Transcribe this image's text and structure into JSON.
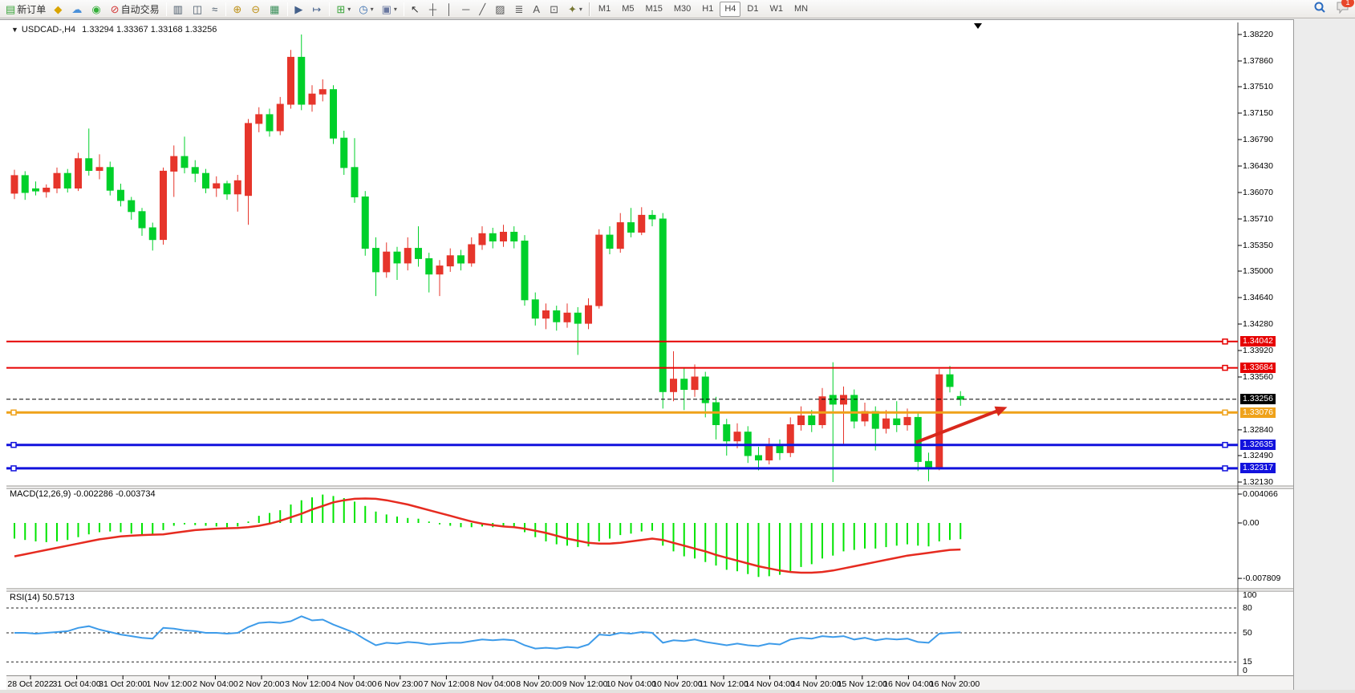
{
  "toolbar": {
    "groups": [
      [
        {
          "name": "new-order-icon",
          "glyph": "▤",
          "color": "#3aa53a",
          "label": "新订单"
        },
        {
          "name": "market-gold-icon",
          "glyph": "◆",
          "color": "#d9a400"
        },
        {
          "name": "community-icon",
          "glyph": "☁",
          "color": "#4a90d9"
        },
        {
          "name": "signals-icon",
          "glyph": "◉",
          "color": "#35b03a"
        },
        {
          "name": "autotrade-icon",
          "glyph": "⊘",
          "color": "#d23535",
          "label": "自动交易"
        }
      ],
      [
        {
          "name": "bar-chart-icon",
          "glyph": "▥",
          "color": "#4a5a6a"
        },
        {
          "name": "candlestick-chart-icon",
          "glyph": "◫",
          "color": "#4a5a6a"
        },
        {
          "name": "line-chart-icon",
          "glyph": "≈",
          "color": "#4a5a6a"
        }
      ],
      [
        {
          "name": "zoom-in-icon",
          "glyph": "⊕",
          "color": "#bd9017"
        },
        {
          "name": "zoom-out-icon",
          "glyph": "⊖",
          "color": "#bd9017"
        },
        {
          "name": "tile-windows-icon",
          "glyph": "▦",
          "color": "#3a8f5a"
        }
      ],
      [
        {
          "name": "auto-scroll-icon",
          "glyph": "▶",
          "color": "#44608a"
        },
        {
          "name": "chart-shift-icon",
          "glyph": "↦",
          "color": "#44608a"
        }
      ],
      [
        {
          "name": "new-chart-icon",
          "glyph": "⊞",
          "color": "#3aa53a",
          "dd": true
        },
        {
          "name": "periods-icon",
          "glyph": "◷",
          "color": "#3a6fb0",
          "dd": true
        },
        {
          "name": "templates-icon",
          "glyph": "▣",
          "color": "#6a78a0",
          "dd": true
        }
      ],
      [
        {
          "name": "cursor-icon",
          "glyph": "↖",
          "color": "#333333"
        },
        {
          "name": "crosshair-icon",
          "glyph": "┼",
          "color": "#555555"
        },
        {
          "name": "vertical-line-icon",
          "glyph": "│",
          "color": "#555555"
        },
        {
          "name": "horizontal-line-icon",
          "glyph": "─",
          "color": "#555555"
        },
        {
          "name": "trendline-icon",
          "glyph": "╱",
          "color": "#555555"
        },
        {
          "name": "channel-icon",
          "glyph": "▨",
          "color": "#555555"
        },
        {
          "name": "fibonacci-icon",
          "glyph": "≣",
          "color": "#555555"
        },
        {
          "name": "text-icon",
          "glyph": "A",
          "color": "#555555"
        },
        {
          "name": "text-label-icon",
          "glyph": "⊡",
          "color": "#555555"
        },
        {
          "name": "arrows-icon",
          "glyph": "✦",
          "color": "#777733",
          "dd": true
        }
      ]
    ],
    "timeframes": {
      "items": [
        "M1",
        "M5",
        "M15",
        "M30",
        "H1",
        "H4",
        "D1",
        "W1",
        "MN"
      ],
      "active": "H4"
    },
    "notification_count": "1"
  },
  "chart": {
    "title": {
      "symbol": "USDCAD-,H4",
      "ohlc": "1.33294 1.33367 1.33168 1.33256"
    },
    "macd_label": "MACD(12,26,9) -0.002286 -0.003734",
    "rsi_label": "RSI(14) 50.5713"
  },
  "price_axis": {
    "ticks": [
      "1.38220",
      "1.37860",
      "1.37510",
      "1.37150",
      "1.36790",
      "1.36430",
      "1.36070",
      "1.35710",
      "1.35350",
      "1.35000",
      "1.34640",
      "1.34280",
      "1.33920",
      "1.33560",
      "1.32840",
      "1.32490",
      "1.32130"
    ]
  },
  "macd_axis": {
    "ticks": [
      "0.004066",
      "0.00",
      "-0.007809"
    ]
  },
  "rsi_axis": {
    "ticks": [
      "100",
      "80",
      "50",
      "15",
      "0"
    ]
  },
  "time_axis": {
    "labels": [
      "28 Oct 2022",
      "31 Oct 04:00",
      "31 Oct 20:00",
      "1 Nov 12:00",
      "2 Nov 04:00",
      "2 Nov 20:00",
      "3 Nov 12:00",
      "4 Nov 04:00",
      "6 Nov 23:00",
      "7 Nov 12:00",
      "8 Nov 04:00",
      "8 Nov 20:00",
      "9 Nov 12:00",
      "10 Nov 04:00",
      "10 Nov 20:00",
      "11 Nov 12:00",
      "14 Nov 04:00",
      "14 Nov 20:00",
      "15 Nov 12:00",
      "16 Nov 04:00",
      "16 Nov 20:00"
    ]
  },
  "colors": {
    "bull_candle": "#e6352b",
    "bear_candle": "#00d02a",
    "macd_hist": "#00e400",
    "macd_signal": "#e62b20",
    "rsi_line": "#3d9be9",
    "level_red": "#e60000",
    "level_orange": "#efa21a",
    "level_blue": "#1212dd",
    "bid_black": "#000000",
    "arrow_red": "#d8281c"
  },
  "chart_data": {
    "type": "candlestick",
    "symbol": "USDCAD",
    "timeframe": "H4",
    "price_axis_range": {
      "top": 1.3843,
      "bottom": 1.3197
    },
    "candles": [
      [
        1.3606,
        1.3638,
        1.3598,
        1.363
      ],
      [
        1.363,
        1.3636,
        1.3597,
        1.3607
      ],
      [
        1.3612,
        1.3622,
        1.3603,
        1.3609
      ],
      [
        1.3608,
        1.3618,
        1.36,
        1.3613
      ],
      [
        1.3613,
        1.3641,
        1.3606,
        1.3633
      ],
      [
        1.3633,
        1.3639,
        1.3607,
        1.3613
      ],
      [
        1.3613,
        1.3661,
        1.3609,
        1.3653
      ],
      [
        1.3653,
        1.3694,
        1.363,
        1.3637
      ],
      [
        1.3637,
        1.3659,
        1.3625,
        1.3641
      ],
      [
        1.3641,
        1.3649,
        1.3603,
        1.361
      ],
      [
        1.361,
        1.3619,
        1.3588,
        1.3596
      ],
      [
        1.3596,
        1.3601,
        1.357,
        1.3581
      ],
      [
        1.3581,
        1.3586,
        1.3548,
        1.3559
      ],
      [
        1.3559,
        1.3566,
        1.3528,
        1.3543
      ],
      [
        1.3543,
        1.3641,
        1.3536,
        1.3636
      ],
      [
        1.3636,
        1.3671,
        1.3601,
        1.3656
      ],
      [
        1.3656,
        1.3683,
        1.3633,
        1.3641
      ],
      [
        1.3641,
        1.3651,
        1.3621,
        1.3633
      ],
      [
        1.3633,
        1.3639,
        1.3606,
        1.3613
      ],
      [
        1.3613,
        1.3629,
        1.3601,
        1.3619
      ],
      [
        1.3619,
        1.3623,
        1.3597,
        1.3605
      ],
      [
        1.3605,
        1.3631,
        1.3581,
        1.3623
      ],
      [
        1.3603,
        1.3707,
        1.3563,
        1.3701
      ],
      [
        1.3701,
        1.3723,
        1.3689,
        1.3713
      ],
      [
        1.3713,
        1.3721,
        1.3683,
        1.3691
      ],
      [
        1.3691,
        1.3737,
        1.3685,
        1.3727
      ],
      [
        1.3727,
        1.3801,
        1.3721,
        1.3791
      ],
      [
        1.3791,
        1.3822,
        1.3719,
        1.3727
      ],
      [
        1.3727,
        1.3753,
        1.3717,
        1.3741
      ],
      [
        1.3741,
        1.3761,
        1.3731,
        1.3747
      ],
      [
        1.3747,
        1.3753,
        1.3673,
        1.3681
      ],
      [
        1.3681,
        1.3691,
        1.3631,
        1.3641
      ],
      [
        1.3641,
        1.3681,
        1.3593,
        1.3601
      ],
      [
        1.3601,
        1.3609,
        1.3521,
        1.3531
      ],
      [
        1.3531,
        1.3546,
        1.3466,
        1.3499
      ],
      [
        1.3499,
        1.3539,
        1.3491,
        1.3526
      ],
      [
        1.3526,
        1.3533,
        1.3488,
        1.3511
      ],
      [
        1.3511,
        1.3546,
        1.3501,
        1.3531
      ],
      [
        1.3531,
        1.3561,
        1.3506,
        1.3517
      ],
      [
        1.3517,
        1.3525,
        1.3471,
        1.3496
      ],
      [
        1.3496,
        1.3515,
        1.3466,
        1.3507
      ],
      [
        1.3507,
        1.3531,
        1.3499,
        1.3521
      ],
      [
        1.3521,
        1.3529,
        1.3501,
        1.3511
      ],
      [
        1.3511,
        1.3546,
        1.3506,
        1.3536
      ],
      [
        1.3536,
        1.3561,
        1.3529,
        1.3551
      ],
      [
        1.3551,
        1.3559,
        1.3531,
        1.3541
      ],
      [
        1.3541,
        1.3563,
        1.3533,
        1.3553
      ],
      [
        1.3553,
        1.3561,
        1.3531,
        1.3541
      ],
      [
        1.3541,
        1.3549,
        1.3453,
        1.3461
      ],
      [
        1.3461,
        1.3471,
        1.3426,
        1.3436
      ],
      [
        1.3436,
        1.3456,
        1.3421,
        1.3446
      ],
      [
        1.3446,
        1.3453,
        1.3419,
        1.3431
      ],
      [
        1.3431,
        1.3456,
        1.3423,
        1.3443
      ],
      [
        1.3443,
        1.3451,
        1.3386,
        1.3429
      ],
      [
        1.3429,
        1.3463,
        1.3421,
        1.3453
      ],
      [
        1.3453,
        1.3557,
        1.3449,
        1.3549
      ],
      [
        1.3549,
        1.3561,
        1.3523,
        1.3531
      ],
      [
        1.3531,
        1.3579,
        1.3525,
        1.3566
      ],
      [
        1.3566,
        1.3586,
        1.3546,
        1.3553
      ],
      [
        1.3553,
        1.3587,
        1.3549,
        1.3576
      ],
      [
        1.3576,
        1.3583,
        1.3561,
        1.3571
      ],
      [
        1.3571,
        1.3579,
        1.3313,
        1.3336
      ],
      [
        1.3336,
        1.3391,
        1.3323,
        1.3353
      ],
      [
        1.3353,
        1.3369,
        1.3311,
        1.3339
      ],
      [
        1.3339,
        1.3373,
        1.3329,
        1.3356
      ],
      [
        1.3356,
        1.3363,
        1.3301,
        1.3321
      ],
      [
        1.3321,
        1.3329,
        1.3271,
        1.3291
      ],
      [
        1.3291,
        1.3299,
        1.3249,
        1.3269
      ],
      [
        1.3269,
        1.3293,
        1.3259,
        1.3281
      ],
      [
        1.3281,
        1.3289,
        1.3239,
        1.3249
      ],
      [
        1.3249,
        1.3261,
        1.3229,
        1.3243
      ],
      [
        1.3243,
        1.3273,
        1.3237,
        1.3263
      ],
      [
        1.3263,
        1.3271,
        1.3243,
        1.3253
      ],
      [
        1.3253,
        1.3301,
        1.3247,
        1.3291
      ],
      [
        1.3291,
        1.3316,
        1.3283,
        1.3303
      ],
      [
        1.3303,
        1.3311,
        1.3281,
        1.3291
      ],
      [
        1.3291,
        1.3341,
        1.3286,
        1.3329
      ],
      [
        1.3331,
        1.3376,
        1.3213,
        1.3319
      ],
      [
        1.3319,
        1.3343,
        1.3263,
        1.3331
      ],
      [
        1.3331,
        1.3339,
        1.3286,
        1.3296
      ],
      [
        1.3296,
        1.3321,
        1.3289,
        1.3309
      ],
      [
        1.3309,
        1.3316,
        1.3256,
        1.3286
      ],
      [
        1.3286,
        1.3311,
        1.3279,
        1.3299
      ],
      [
        1.3299,
        1.3323,
        1.3281,
        1.3291
      ],
      [
        1.3291,
        1.3313,
        1.3283,
        1.3301
      ],
      [
        1.3301,
        1.3309,
        1.3228,
        1.3241
      ],
      [
        1.3241,
        1.3253,
        1.3214,
        1.3233
      ],
      [
        1.3233,
        1.3367,
        1.3229,
        1.3359
      ],
      [
        1.3359,
        1.3371,
        1.3335,
        1.3343
      ],
      [
        1.33294,
        1.33367,
        1.33168,
        1.33256
      ]
    ],
    "macd": {
      "params": "12,26,9",
      "readout": {
        "macd": "-0.002286",
        "signal": "-0.003734"
      },
      "max": 0.004066,
      "min": -0.007809,
      "histogram": [
        -0.0022,
        -0.0024,
        -0.0026,
        -0.0027,
        -0.0026,
        -0.0024,
        -0.002,
        -0.0016,
        -0.0013,
        -0.0012,
        -0.0013,
        -0.0015,
        -0.0016,
        -0.0016,
        -0.001,
        -0.0004,
        -0.0002,
        -0.0003,
        -0.0004,
        -0.0005,
        -0.0006,
        -0.0005,
        0.0002,
        0.001,
        0.0014,
        0.0018,
        0.0026,
        0.0032,
        0.0036,
        0.004,
        0.0038,
        0.0035,
        0.003,
        0.0024,
        0.0016,
        0.0012,
        0.0009,
        0.0007,
        0.0006,
        0.0002,
        -0.0002,
        -0.0004,
        -0.0006,
        -0.0006,
        -0.0005,
        -0.0006,
        -0.0006,
        -0.0007,
        -0.0013,
        -0.002,
        -0.0026,
        -0.003,
        -0.0032,
        -0.0034,
        -0.0033,
        -0.0026,
        -0.0022,
        -0.0017,
        -0.0015,
        -0.0012,
        -0.0011,
        -0.0032,
        -0.004,
        -0.0047,
        -0.005,
        -0.0055,
        -0.006,
        -0.0066,
        -0.0068,
        -0.0072,
        -0.0076,
        -0.0075,
        -0.0073,
        -0.0068,
        -0.0062,
        -0.0058,
        -0.005,
        -0.0046,
        -0.004,
        -0.0038,
        -0.0036,
        -0.0036,
        -0.0034,
        -0.0032,
        -0.003,
        -0.0032,
        -0.0033,
        -0.0026,
        -0.0024,
        -0.002286
      ],
      "signal": [
        -0.0047,
        -0.0044,
        -0.0041,
        -0.0038,
        -0.0035,
        -0.0032,
        -0.0029,
        -0.0026,
        -0.0023,
        -0.0021,
        -0.0019,
        -0.0018,
        -0.0017,
        -0.00165,
        -0.0016,
        -0.0014,
        -0.0012,
        -0.001,
        -0.0009,
        -0.0008,
        -0.00075,
        -0.0007,
        -0.0006,
        -0.0004,
        -0.0001,
        0.0003,
        0.0008,
        0.0013,
        0.0019,
        0.0024,
        0.0029,
        0.0032,
        0.0034,
        0.00345,
        0.0034,
        0.0032,
        0.0029,
        0.0026,
        0.0022,
        0.0018,
        0.0014,
        0.001,
        0.0006,
        0.0002,
        -0.0001,
        -0.0003,
        -0.0005,
        -0.0006,
        -0.0008,
        -0.0011,
        -0.0014,
        -0.0018,
        -0.0022,
        -0.0025,
        -0.0028,
        -0.0029,
        -0.0029,
        -0.0028,
        -0.0026,
        -0.0024,
        -0.0022,
        -0.0024,
        -0.0028,
        -0.0032,
        -0.0036,
        -0.004,
        -0.0045,
        -0.0049,
        -0.0053,
        -0.0057,
        -0.0061,
        -0.0064,
        -0.0067,
        -0.0069,
        -0.007,
        -0.007,
        -0.0069,
        -0.0067,
        -0.0064,
        -0.0061,
        -0.0058,
        -0.0055,
        -0.0052,
        -0.0049,
        -0.0046,
        -0.0044,
        -0.0042,
        -0.004,
        -0.0038,
        -0.003734
      ]
    },
    "rsi": {
      "period": 14,
      "current": 50.5713,
      "range": [
        0,
        100
      ],
      "dashed_levels": [
        80,
        50,
        15
      ],
      "values": [
        50,
        50,
        49,
        50,
        51,
        52,
        56,
        58,
        54,
        51,
        48,
        46,
        44,
        43,
        56,
        55,
        53,
        52,
        50,
        50,
        49,
        50,
        57,
        62,
        63,
        62,
        64,
        70,
        65,
        66,
        60,
        55,
        50,
        42,
        35,
        38,
        37,
        39,
        38,
        36,
        37,
        38,
        38,
        40,
        42,
        41,
        42,
        41,
        35,
        31,
        32,
        31,
        33,
        32,
        36,
        48,
        47,
        50,
        49,
        51,
        50,
        38,
        41,
        40,
        42,
        39,
        37,
        35,
        37,
        35,
        34,
        37,
        36,
        42,
        44,
        43,
        46,
        45,
        46,
        42,
        44,
        41,
        43,
        42,
        43,
        39,
        38,
        49,
        50,
        50.57
      ]
    },
    "levels": [
      {
        "price": 1.34042,
        "label": "1.34042",
        "kind": "resistance",
        "color_key": "level_red",
        "width": 2,
        "dashed": false,
        "left_handle": false
      },
      {
        "price": 1.33684,
        "label": "1.33684",
        "kind": "resistance",
        "color_key": "level_red",
        "width": 2,
        "dashed": false,
        "left_handle": false
      },
      {
        "price": 1.33256,
        "label": "1.33256",
        "kind": "bid",
        "color_key": "bid_black",
        "width": 1,
        "dashed": true,
        "left_handle": false
      },
      {
        "price": 1.33076,
        "label": "1.33076",
        "kind": "pivot",
        "color_key": "level_orange",
        "width": 3,
        "dashed": false,
        "left_handle": true
      },
      {
        "price": 1.32635,
        "label": "1.32635",
        "kind": "support",
        "color_key": "level_blue",
        "width": 3,
        "dashed": false,
        "left_handle": true
      },
      {
        "price": 1.32317,
        "label": "1.32317",
        "kind": "support",
        "color_key": "level_blue",
        "width": 3,
        "dashed": false,
        "left_handle": true
      }
    ],
    "trend_arrow": {
      "from": {
        "index": 85.1,
        "price": 1.3267
      },
      "to": {
        "index": 93.7,
        "price": 1.3315
      }
    }
  }
}
